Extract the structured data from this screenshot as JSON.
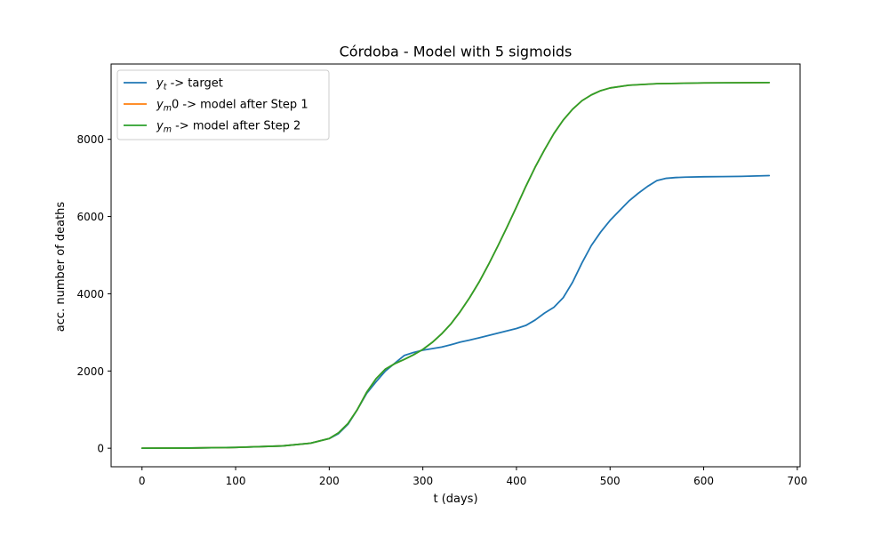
{
  "chart_data": {
    "type": "line",
    "title": "Córdoba - Model with 5 sigmoids",
    "xlabel": "t (days)",
    "ylabel": "acc. number of deaths",
    "xlim": [
      -33,
      703
    ],
    "ylim": [
      -480,
      9950
    ],
    "x_ticks": [
      0,
      100,
      200,
      300,
      400,
      500,
      600,
      700
    ],
    "x_tick_labels": [
      "0",
      "100",
      "200",
      "300",
      "400",
      "500",
      "600",
      "700"
    ],
    "y_ticks": [
      0,
      2000,
      4000,
      6000,
      8000
    ],
    "y_tick_labels": [
      "0",
      "2000",
      "4000",
      "6000",
      "8000"
    ],
    "grid": false,
    "legend_position": "top-left",
    "series": [
      {
        "name": "y_t ->  target",
        "legend_base": "y",
        "legend_sub": "t",
        "legend_rest": " ->  target",
        "color": "#1f77b4",
        "points": [
          [
            0,
            0
          ],
          [
            50,
            5
          ],
          [
            100,
            20
          ],
          [
            150,
            60
          ],
          [
            180,
            130
          ],
          [
            200,
            250
          ],
          [
            210,
            380
          ],
          [
            220,
            620
          ],
          [
            230,
            1000
          ],
          [
            240,
            1420
          ],
          [
            250,
            1720
          ],
          [
            260,
            2000
          ],
          [
            270,
            2200
          ],
          [
            280,
            2400
          ],
          [
            290,
            2480
          ],
          [
            300,
            2540
          ],
          [
            310,
            2580
          ],
          [
            320,
            2620
          ],
          [
            330,
            2680
          ],
          [
            340,
            2750
          ],
          [
            350,
            2800
          ],
          [
            360,
            2860
          ],
          [
            370,
            2920
          ],
          [
            380,
            2980
          ],
          [
            390,
            3040
          ],
          [
            400,
            3100
          ],
          [
            410,
            3180
          ],
          [
            420,
            3320
          ],
          [
            430,
            3500
          ],
          [
            440,
            3650
          ],
          [
            450,
            3900
          ],
          [
            460,
            4300
          ],
          [
            470,
            4800
          ],
          [
            480,
            5250
          ],
          [
            490,
            5600
          ],
          [
            500,
            5900
          ],
          [
            510,
            6150
          ],
          [
            520,
            6400
          ],
          [
            530,
            6600
          ],
          [
            540,
            6780
          ],
          [
            550,
            6930
          ],
          [
            560,
            6990
          ],
          [
            570,
            7010
          ],
          [
            580,
            7020
          ],
          [
            600,
            7030
          ],
          [
            620,
            7035
          ],
          [
            640,
            7040
          ],
          [
            670,
            7060
          ]
        ]
      },
      {
        "name": "y_m0 ->  model after Step 1",
        "legend_base": "y",
        "legend_sub": "m",
        "legend_rest": "0 ->  model after Step 1",
        "color": "#ff7f0e",
        "points": [
          [
            0,
            0
          ],
          [
            50,
            5
          ],
          [
            100,
            20
          ],
          [
            150,
            60
          ],
          [
            180,
            130
          ],
          [
            200,
            250
          ],
          [
            210,
            400
          ],
          [
            220,
            640
          ],
          [
            230,
            1000
          ],
          [
            240,
            1450
          ],
          [
            250,
            1800
          ],
          [
            260,
            2050
          ],
          [
            270,
            2190
          ],
          [
            280,
            2300
          ],
          [
            290,
            2420
          ],
          [
            300,
            2560
          ],
          [
            310,
            2740
          ],
          [
            320,
            2960
          ],
          [
            330,
            3220
          ],
          [
            340,
            3540
          ],
          [
            350,
            3900
          ],
          [
            360,
            4300
          ],
          [
            370,
            4750
          ],
          [
            380,
            5230
          ],
          [
            390,
            5730
          ],
          [
            400,
            6250
          ],
          [
            410,
            6780
          ],
          [
            420,
            7280
          ],
          [
            430,
            7730
          ],
          [
            440,
            8150
          ],
          [
            450,
            8500
          ],
          [
            460,
            8780
          ],
          [
            470,
            9000
          ],
          [
            480,
            9150
          ],
          [
            490,
            9260
          ],
          [
            500,
            9330
          ],
          [
            520,
            9400
          ],
          [
            550,
            9440
          ],
          [
            600,
            9460
          ],
          [
            670,
            9470
          ]
        ]
      },
      {
        "name": "y_m ->  model after Step 2",
        "legend_base": "y",
        "legend_sub": "m",
        "legend_rest": " ->  model after Step 2",
        "color": "#2ca02c",
        "points": [
          [
            0,
            0
          ],
          [
            50,
            5
          ],
          [
            100,
            20
          ],
          [
            150,
            60
          ],
          [
            180,
            130
          ],
          [
            200,
            250
          ],
          [
            210,
            400
          ],
          [
            220,
            640
          ],
          [
            230,
            1000
          ],
          [
            240,
            1450
          ],
          [
            250,
            1800
          ],
          [
            260,
            2050
          ],
          [
            270,
            2190
          ],
          [
            280,
            2300
          ],
          [
            290,
            2420
          ],
          [
            300,
            2560
          ],
          [
            310,
            2740
          ],
          [
            320,
            2960
          ],
          [
            330,
            3220
          ],
          [
            340,
            3540
          ],
          [
            350,
            3900
          ],
          [
            360,
            4300
          ],
          [
            370,
            4750
          ],
          [
            380,
            5230
          ],
          [
            390,
            5730
          ],
          [
            400,
            6250
          ],
          [
            410,
            6780
          ],
          [
            420,
            7280
          ],
          [
            430,
            7730
          ],
          [
            440,
            8150
          ],
          [
            450,
            8500
          ],
          [
            460,
            8780
          ],
          [
            470,
            9000
          ],
          [
            480,
            9150
          ],
          [
            490,
            9260
          ],
          [
            500,
            9330
          ],
          [
            520,
            9400
          ],
          [
            550,
            9440
          ],
          [
            600,
            9460
          ],
          [
            670,
            9470
          ]
        ]
      }
    ]
  }
}
